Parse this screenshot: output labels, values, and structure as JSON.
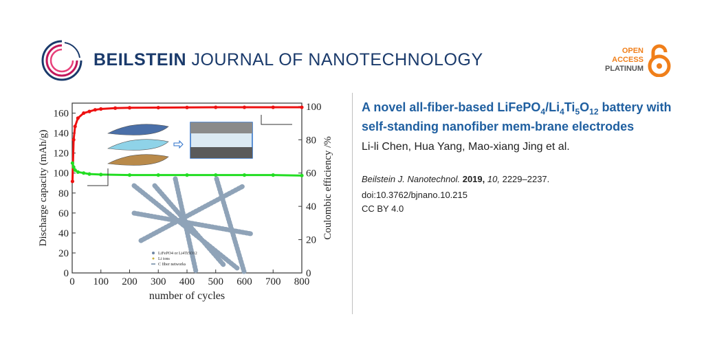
{
  "header": {
    "journal_bold": "BEILSTEIN",
    "journal_rest": " JOURNAL OF NANOTECHNOLOGY",
    "oa_line1": "OPEN",
    "oa_line2": "ACCESS",
    "oa_line3": "PLATINUM",
    "oa_icon": "open-lock-icon",
    "logo_icon": "beilstein-swirl-logo"
  },
  "article": {
    "title_parts": [
      "A novel all-fiber-based LiFePO",
      "4",
      "/Li",
      "4",
      "Ti",
      "5",
      "O",
      "12",
      " battery with self-standing nanofiber mem-brane electrodes"
    ],
    "authors": "Li-li Chen, Hua Yang, Mao-xiang Jing et al.",
    "journal_abbrev": "Beilstein J. Nanotechnol.",
    "year": "2019,",
    "volume": "10,",
    "pages": "2229–2237.",
    "doi": "doi:10.3762/bjnano.10.215",
    "license": "CC BY 4.0"
  },
  "chart_data": {
    "type": "scatter",
    "xlabel": "number of cycles",
    "ylabel": "Discharge capacity (mAh/g)",
    "y2label": "Coulombic efficiency /%",
    "xlim": [
      0,
      800
    ],
    "ylim": [
      0,
      170
    ],
    "y2lim": [
      0,
      102
    ],
    "xticks": [
      100,
      200,
      300,
      400,
      500,
      600,
      700,
      800
    ],
    "yticks": [
      0,
      20,
      40,
      60,
      80,
      100,
      120,
      140,
      160
    ],
    "y2ticks": [
      0,
      20,
      40,
      60,
      80,
      100
    ],
    "series": [
      {
        "color": "#ee1111",
        "axis": "right",
        "x": [
          1,
          5,
          10,
          20,
          40,
          60,
          80,
          100,
          150,
          200,
          300,
          400,
          500,
          600,
          700,
          800
        ],
        "y": [
          55,
          80,
          88,
          93,
          96,
          97,
          98,
          98.5,
          99,
          99.2,
          99.3,
          99.4,
          99.5,
          99.5,
          99.5,
          99.5
        ]
      },
      {
        "color": "#22dd22",
        "axis": "left",
        "x": [
          1,
          5,
          10,
          20,
          40,
          60,
          100,
          200,
          300,
          400,
          500,
          600,
          700,
          800
        ],
        "y": [
          110,
          106,
          103,
          101,
          100,
          99,
          98.5,
          98,
          98,
          98,
          98,
          98,
          98,
          97.5
        ]
      }
    ],
    "inset_legend": [
      "LiFePO4 or Li4Ti5O12",
      "Li ions",
      "C fiber networks"
    ],
    "grid": false
  }
}
